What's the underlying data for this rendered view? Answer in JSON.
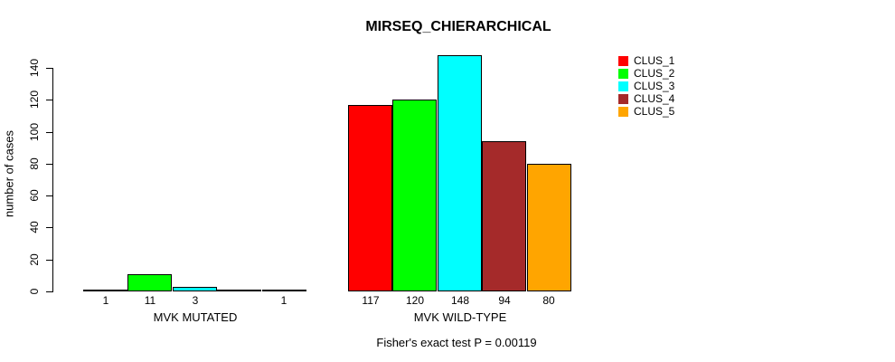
{
  "chart_data": {
    "type": "bar",
    "title": "MIRSEQ_CHIERARCHICAL",
    "ylabel": "number of cases",
    "xlabel": "",
    "ylim": [
      0,
      140
    ],
    "yticks": [
      0,
      20,
      40,
      60,
      80,
      100,
      120,
      140
    ],
    "grid": false,
    "legend_position": "top-right",
    "categories": [
      "MVK MUTATED",
      "MVK WILD-TYPE"
    ],
    "series": [
      {
        "name": "CLUS_1",
        "color": "#FF0000",
        "values": [
          1,
          117
        ]
      },
      {
        "name": "CLUS_2",
        "color": "#00FF00",
        "values": [
          11,
          120
        ]
      },
      {
        "name": "CLUS_3",
        "color": "#00FFFF",
        "values": [
          3,
          148
        ]
      },
      {
        "name": "CLUS_4",
        "color": "#A52A2A",
        "values": [
          0,
          94
        ]
      },
      {
        "name": "CLUS_5",
        "color": "#FFA500",
        "values": [
          1,
          80
        ]
      }
    ],
    "bar_labels": [
      [
        "1",
        "11",
        "3",
        "",
        "1"
      ],
      [
        "117",
        "120",
        "148",
        "94",
        "80"
      ]
    ],
    "annotation": "Fisher's exact test P = 0.00119"
  }
}
